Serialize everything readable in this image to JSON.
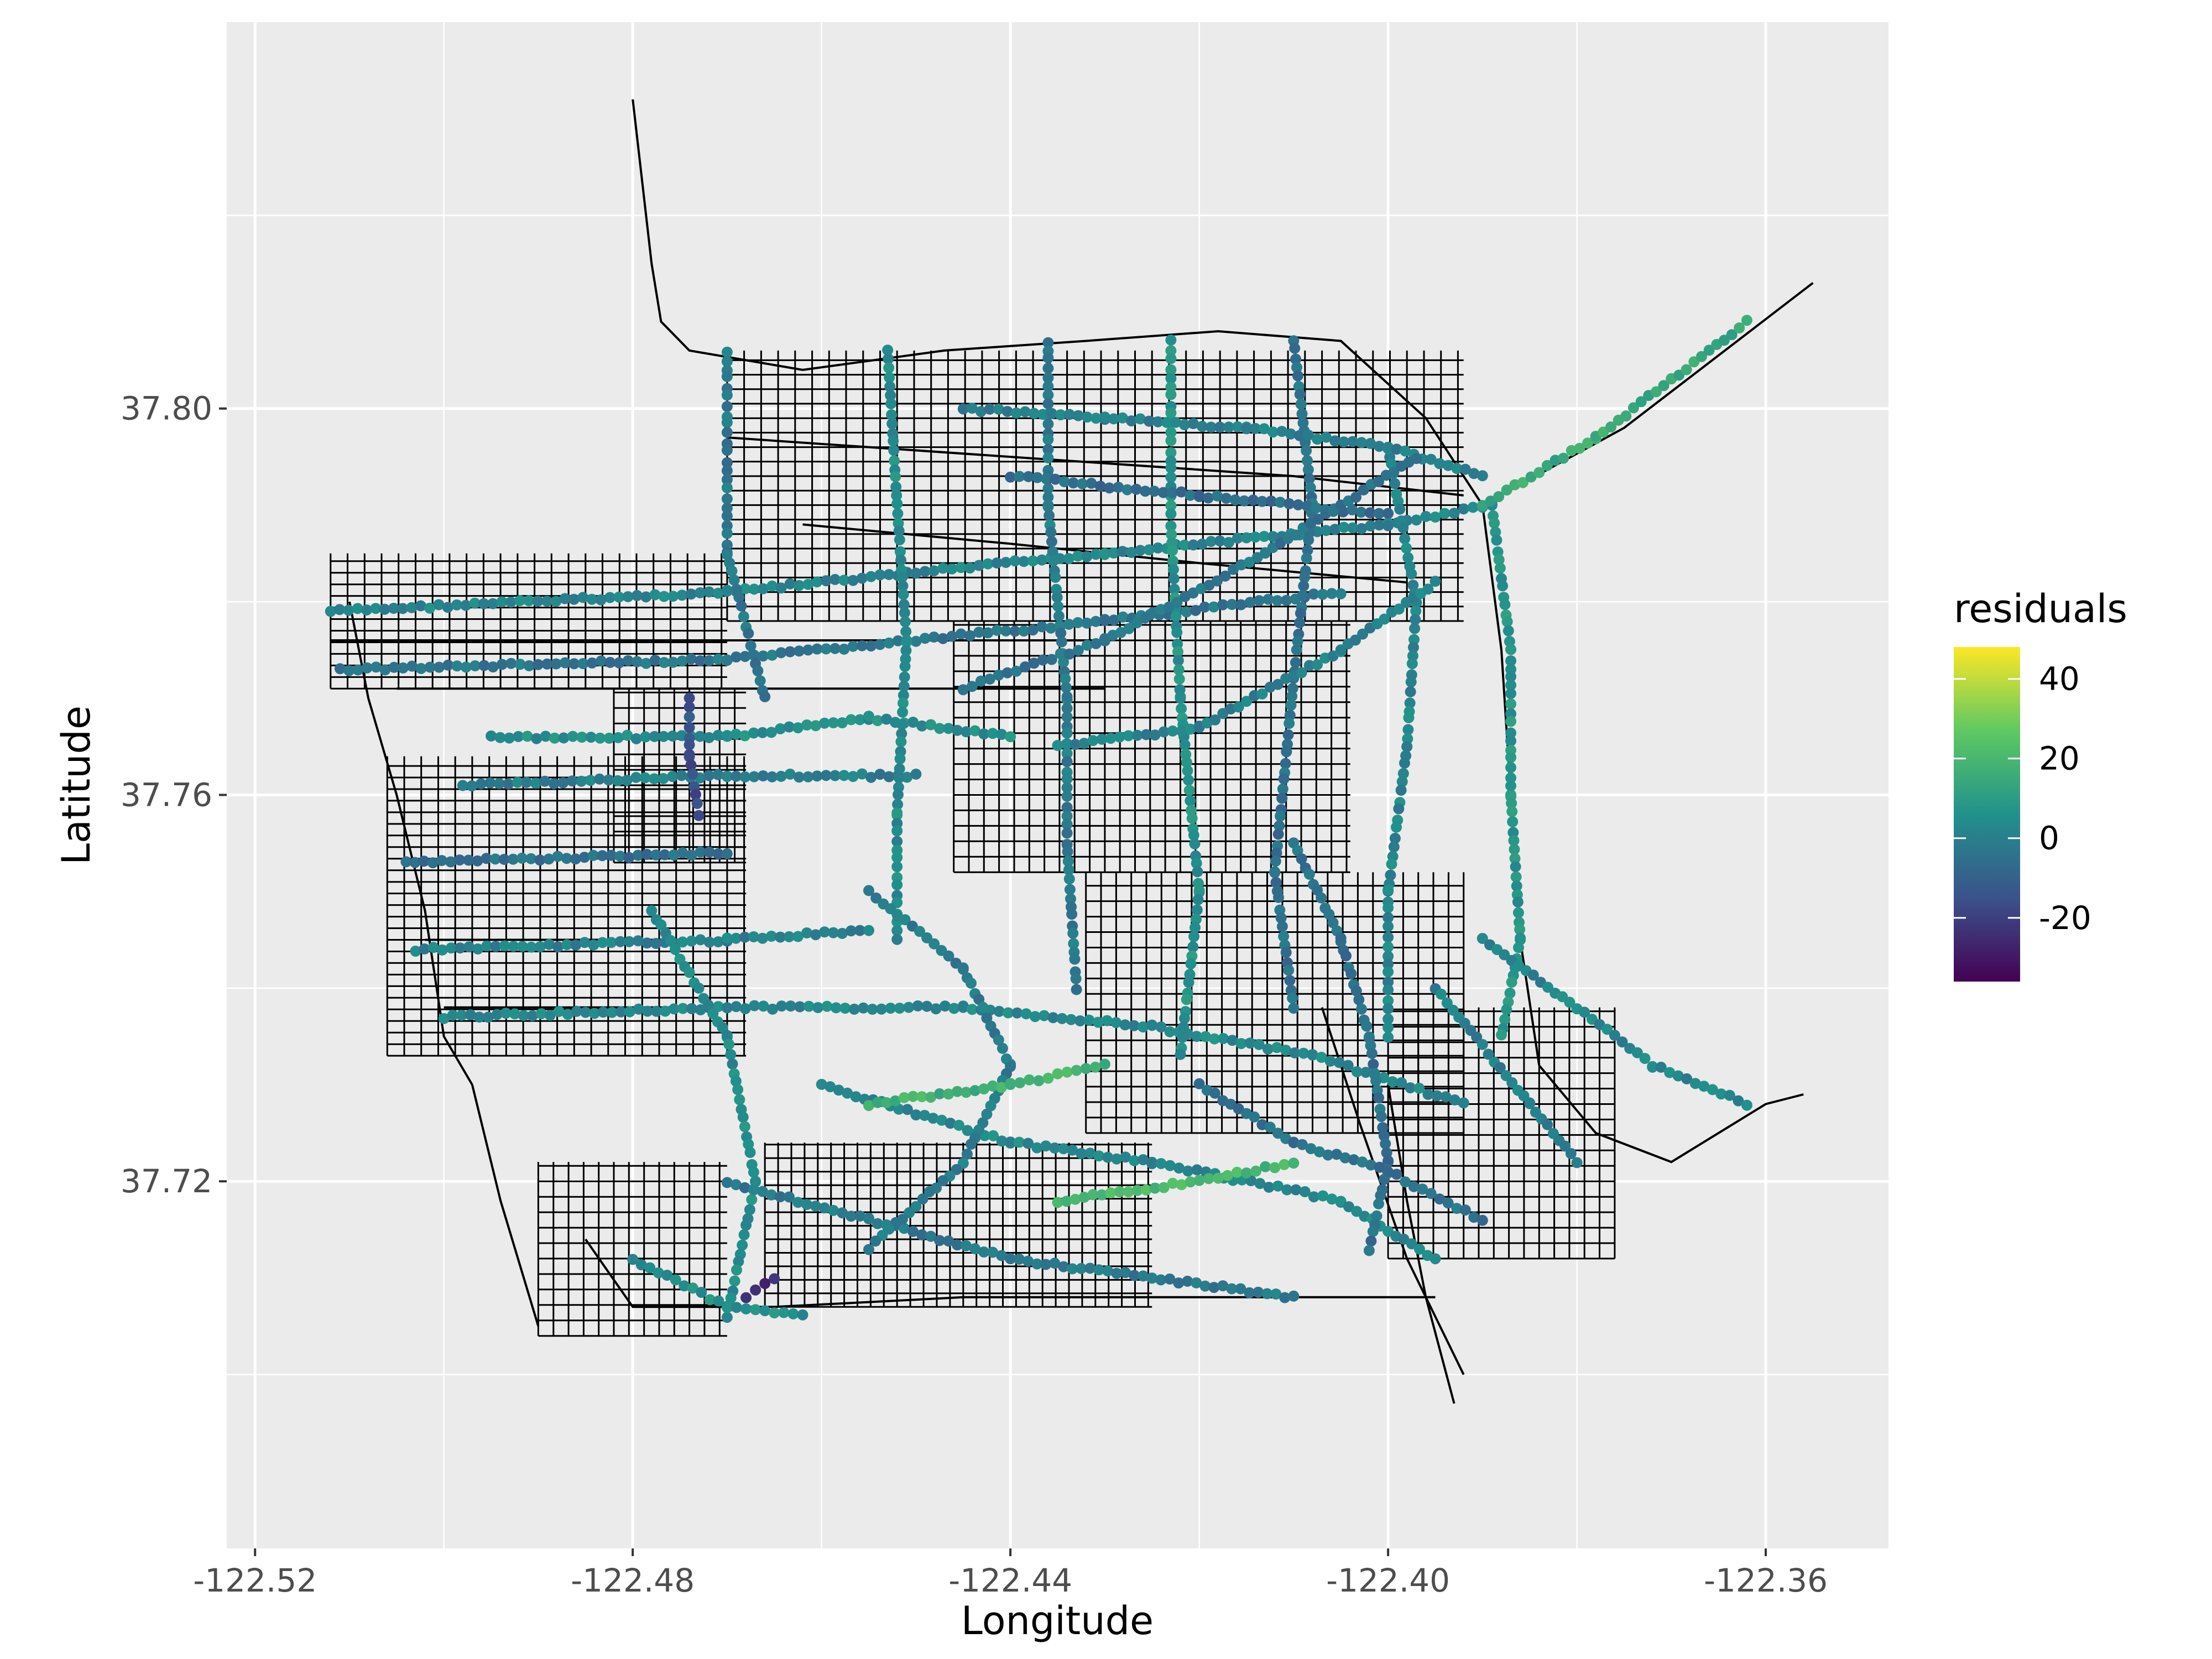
{
  "chart_data": {
    "type": "scatter",
    "title": "",
    "xlabel": "Longitude",
    "ylabel": "Latitude",
    "xlim": [
      -122.523,
      -122.347
    ],
    "ylim": [
      37.682,
      37.84
    ],
    "x_ticks": [
      -122.52,
      -122.48,
      -122.44,
      -122.4,
      -122.36
    ],
    "x_tick_labels": [
      "-122.52",
      "-122.48",
      "-122.44",
      "-122.40",
      "-122.36"
    ],
    "y_ticks": [
      37.72,
      37.76,
      37.8
    ],
    "y_tick_labels": [
      "37.72",
      "37.76",
      "37.80"
    ],
    "grid": true,
    "background": "#ebebeb",
    "legend": {
      "title": "residuals",
      "placement": "right",
      "range": [
        -36,
        48
      ],
      "ticks": [
        40,
        20,
        0,
        -20
      ],
      "tick_labels": [
        "40",
        "20",
        "0",
        "-20"
      ],
      "colormap": "viridis",
      "colors": [
        "#440154",
        "#3b528b",
        "#21918c",
        "#5ec962",
        "#fde725"
      ]
    },
    "layers": [
      {
        "name": "streets",
        "type": "lines",
        "color": "#000000"
      },
      {
        "name": "points",
        "type": "scatter",
        "color_by": "residuals"
      }
    ],
    "street_lines": [
      [
        [
          -122.48,
          37.832
        ],
        [
          -122.478,
          37.815
        ],
        [
          -122.477,
          37.809
        ],
        [
          -122.474,
          37.806
        ],
        [
          -122.468,
          37.805
        ],
        [
          -122.462,
          37.804
        ]
      ],
      [
        [
          -122.39,
          37.79
        ],
        [
          -122.375,
          37.798
        ],
        [
          -122.363,
          37.807
        ],
        [
          -122.355,
          37.813
        ]
      ],
      [
        [
          -122.462,
          37.804
        ],
        [
          -122.447,
          37.806
        ],
        [
          -122.432,
          37.807
        ],
        [
          -122.418,
          37.808
        ],
        [
          -122.405,
          37.807
        ],
        [
          -122.396,
          37.799
        ],
        [
          -122.39,
          37.79
        ]
      ],
      [
        [
          -122.51,
          37.78
        ],
        [
          -122.508,
          37.77
        ],
        [
          -122.505,
          37.76
        ],
        [
          -122.502,
          37.748
        ],
        [
          -122.5,
          37.735
        ],
        [
          -122.497,
          37.73
        ]
      ],
      [
        [
          -122.497,
          37.73
        ],
        [
          -122.494,
          37.718
        ],
        [
          -122.49,
          37.705
        ]
      ],
      [
        [
          -122.485,
          37.714
        ],
        [
          -122.48,
          37.707
        ],
        [
          -122.465,
          37.707
        ],
        [
          -122.445,
          37.708
        ],
        [
          -122.425,
          37.708
        ],
        [
          -122.405,
          37.708
        ],
        [
          -122.395,
          37.708
        ]
      ],
      [
        [
          -122.39,
          37.79
        ],
        [
          -122.388,
          37.775
        ],
        [
          -122.387,
          37.76
        ],
        [
          -122.386,
          37.745
        ],
        [
          -122.384,
          37.732
        ]
      ],
      [
        [
          -122.384,
          37.732
        ],
        [
          -122.378,
          37.725
        ],
        [
          -122.37,
          37.722
        ],
        [
          -122.36,
          37.728
        ],
        [
          -122.356,
          37.729
        ]
      ],
      [
        [
          -122.4,
          37.73
        ],
        [
          -122.398,
          37.718
        ],
        [
          -122.396,
          37.708
        ],
        [
          -122.393,
          37.697
        ]
      ],
      [
        [
          -122.407,
          37.738
        ],
        [
          -122.403,
          37.726
        ],
        [
          -122.398,
          37.712
        ],
        [
          -122.392,
          37.7
        ]
      ],
      [
        [
          -122.512,
          37.776
        ],
        [
          -122.43,
          37.776
        ]
      ],
      [
        [
          -122.505,
          37.771
        ],
        [
          -122.43,
          37.771
        ]
      ],
      [
        [
          -122.47,
          37.797
        ],
        [
          -122.44,
          37.795
        ],
        [
          -122.41,
          37.793
        ],
        [
          -122.392,
          37.791
        ]
      ],
      [
        [
          -122.462,
          37.788
        ],
        [
          -122.44,
          37.786
        ],
        [
          -122.42,
          37.784
        ],
        [
          -122.398,
          37.782
        ]
      ],
      [
        [
          -122.502,
          37.745
        ],
        [
          -122.47,
          37.745
        ]
      ],
      [
        [
          -122.5,
          37.738
        ],
        [
          -122.47,
          37.738
        ]
      ]
    ],
    "street_grids": [
      {
        "x": [
          -122.512,
          -122.47
        ],
        "y": [
          37.771,
          37.785
        ],
        "dx": 0.0018,
        "dy": 0.0012
      },
      {
        "x": [
          -122.506,
          -122.468
        ],
        "y": [
          37.733,
          37.764
        ],
        "dx": 0.0018,
        "dy": 0.0012
      },
      {
        "x": [
          -122.47,
          -122.392
        ],
        "y": [
          37.778,
          37.806
        ],
        "dx": 0.0018,
        "dy": 0.0015
      },
      {
        "x": [
          -122.446,
          -122.404
        ],
        "y": [
          37.752,
          37.778
        ],
        "dx": 0.0016,
        "dy": 0.0016
      },
      {
        "x": [
          -122.432,
          -122.392
        ],
        "y": [
          37.725,
          37.752
        ],
        "dx": 0.0016,
        "dy": 0.0016
      },
      {
        "x": [
          -122.466,
          -122.425
        ],
        "y": [
          37.707,
          37.724
        ],
        "dx": 0.0014,
        "dy": 0.0014
      },
      {
        "x": [
          -122.4,
          -122.376
        ],
        "y": [
          37.712,
          37.738
        ],
        "dx": 0.0016,
        "dy": 0.0016
      },
      {
        "x": [
          -122.49,
          -122.47
        ],
        "y": [
          37.704,
          37.722
        ],
        "dx": 0.0016,
        "dy": 0.0016
      },
      {
        "x": [
          -122.482,
          -122.468
        ],
        "y": [
          37.753,
          37.771
        ],
        "dx": 0.0016,
        "dy": 0.0016
      }
    ],
    "point_routes": [
      {
        "residual": 2,
        "path": [
          [
            -122.512,
            37.779
          ],
          [
            -122.47,
            37.781
          ],
          [
            -122.43,
            37.785
          ],
          [
            -122.4,
            37.788
          ],
          [
            -122.389,
            37.79
          ]
        ]
      },
      {
        "residual": -3,
        "path": [
          [
            -122.511,
            37.773
          ],
          [
            -122.47,
            37.774
          ],
          [
            -122.43,
            37.778
          ],
          [
            -122.405,
            37.781
          ]
        ]
      },
      {
        "residual": 5,
        "path": [
          [
            -122.495,
            37.766
          ],
          [
            -122.47,
            37.766
          ],
          [
            -122.455,
            37.768
          ],
          [
            -122.44,
            37.766
          ]
        ]
      },
      {
        "residual": 0,
        "path": [
          [
            -122.498,
            37.761
          ],
          [
            -122.47,
            37.762
          ],
          [
            -122.45,
            37.762
          ]
        ]
      },
      {
        "residual": -5,
        "path": [
          [
            -122.504,
            37.753
          ],
          [
            -122.47,
            37.754
          ]
        ]
      },
      {
        "residual": 1,
        "path": [
          [
            -122.503,
            37.744
          ],
          [
            -122.47,
            37.745
          ],
          [
            -122.455,
            37.746
          ]
        ]
      },
      {
        "residual": 3,
        "path": [
          [
            -122.5,
            37.737
          ],
          [
            -122.47,
            37.738
          ],
          [
            -122.445,
            37.738
          ],
          [
            -122.425,
            37.736
          ],
          [
            -122.408,
            37.733
          ],
          [
            -122.392,
            37.728
          ]
        ]
      },
      {
        "residual": -2,
        "path": [
          [
            -122.47,
            37.806
          ],
          [
            -122.47,
            37.785
          ],
          [
            -122.466,
            37.77
          ]
        ]
      },
      {
        "residual": 4,
        "path": [
          [
            -122.453,
            37.806
          ],
          [
            -122.452,
            37.79
          ],
          [
            -122.451,
            37.776
          ],
          [
            -122.452,
            37.758
          ],
          [
            -122.452,
            37.745
          ]
        ]
      },
      {
        "residual": -1,
        "path": [
          [
            -122.436,
            37.807
          ],
          [
            -122.436,
            37.79
          ],
          [
            -122.434,
            37.77
          ],
          [
            -122.434,
            37.755
          ],
          [
            -122.433,
            37.74
          ]
        ]
      },
      {
        "residual": 6,
        "path": [
          [
            -122.423,
            37.807
          ],
          [
            -122.423,
            37.788
          ],
          [
            -122.422,
            37.77
          ],
          [
            -122.42,
            37.75
          ],
          [
            -122.422,
            37.733
          ]
        ]
      },
      {
        "residual": -4,
        "path": [
          [
            -122.41,
            37.807
          ],
          [
            -122.408,
            37.79
          ],
          [
            -122.41,
            37.772
          ],
          [
            -122.412,
            37.752
          ],
          [
            -122.41,
            37.738
          ]
        ]
      },
      {
        "residual": 2,
        "path": [
          [
            -122.4,
            37.796
          ],
          [
            -122.397,
            37.78
          ],
          [
            -122.398,
            37.765
          ],
          [
            -122.4,
            37.75
          ],
          [
            -122.4,
            37.735
          ]
        ]
      },
      {
        "residual": 0,
        "path": [
          [
            -122.445,
            37.8
          ],
          [
            -122.43,
            37.799
          ],
          [
            -122.415,
            37.798
          ],
          [
            -122.4,
            37.796
          ],
          [
            -122.39,
            37.793
          ]
        ]
      },
      {
        "residual": -6,
        "path": [
          [
            -122.44,
            37.793
          ],
          [
            -122.42,
            37.791
          ],
          [
            -122.4,
            37.789
          ]
        ]
      },
      {
        "residual": 7,
        "path": [
          [
            -122.389,
            37.79
          ],
          [
            -122.387,
            37.775
          ],
          [
            -122.387,
            37.76
          ],
          [
            -122.386,
            37.745
          ],
          [
            -122.388,
            37.735
          ]
        ]
      },
      {
        "residual": 1,
        "path": [
          [
            -122.435,
            37.765
          ],
          [
            -122.42,
            37.767
          ],
          [
            -122.405,
            37.775
          ],
          [
            -122.395,
            37.782
          ]
        ]
      },
      {
        "residual": -3,
        "path": [
          [
            -122.445,
            37.771
          ],
          [
            -122.43,
            37.776
          ],
          [
            -122.413,
            37.785
          ],
          [
            -122.397,
            37.795
          ]
        ]
      },
      {
        "residual": 4,
        "path": [
          [
            -122.478,
            37.748
          ],
          [
            -122.47,
            37.735
          ],
          [
            -122.467,
            37.72
          ],
          [
            -122.47,
            37.706
          ]
        ]
      },
      {
        "residual": -2,
        "path": [
          [
            -122.47,
            37.72
          ],
          [
            -122.455,
            37.716
          ],
          [
            -122.44,
            37.712
          ],
          [
            -122.425,
            37.71
          ],
          [
            -122.41,
            37.708
          ]
        ]
      },
      {
        "residual": 3,
        "path": [
          [
            -122.46,
            37.73
          ],
          [
            -122.44,
            37.724
          ],
          [
            -122.425,
            37.722
          ],
          [
            -122.405,
            37.718
          ],
          [
            -122.395,
            37.712
          ]
        ]
      },
      {
        "residual": -1,
        "path": [
          [
            -122.455,
            37.75
          ],
          [
            -122.445,
            37.742
          ],
          [
            -122.44,
            37.732
          ],
          [
            -122.445,
            37.722
          ],
          [
            -122.455,
            37.713
          ]
        ]
      },
      {
        "residual": 5,
        "path": [
          [
            -122.48,
            37.712
          ],
          [
            -122.47,
            37.707
          ],
          [
            -122.462,
            37.706
          ]
        ]
      },
      {
        "residual": -5,
        "path": [
          [
            -122.41,
            37.755
          ],
          [
            -122.405,
            37.745
          ],
          [
            -122.402,
            37.735
          ],
          [
            -122.4,
            37.722
          ],
          [
            -122.402,
            37.713
          ]
        ]
      },
      {
        "residual": 2,
        "path": [
          [
            -122.39,
            37.745
          ],
          [
            -122.38,
            37.738
          ],
          [
            -122.372,
            37.732
          ],
          [
            -122.362,
            37.728
          ]
        ]
      },
      {
        "residual": 0,
        "path": [
          [
            -122.395,
            37.74
          ],
          [
            -122.385,
            37.728
          ],
          [
            -122.38,
            37.722
          ]
        ]
      },
      {
        "residual": -4,
        "path": [
          [
            -122.42,
            37.73
          ],
          [
            -122.41,
            37.724
          ],
          [
            -122.4,
            37.721
          ],
          [
            -122.39,
            37.716
          ]
        ]
      },
      {
        "residual": 15,
        "path": [
          [
            -122.39,
            37.79
          ],
          [
            -122.378,
            37.797
          ],
          [
            -122.37,
            37.803
          ],
          [
            -122.362,
            37.809
          ]
        ]
      },
      {
        "residual": 18,
        "path": [
          [
            -122.455,
            37.728
          ],
          [
            -122.44,
            37.73
          ],
          [
            -122.43,
            37.732
          ]
        ]
      },
      {
        "residual": 20,
        "path": [
          [
            -122.435,
            37.718
          ],
          [
            -122.42,
            37.72
          ],
          [
            -122.41,
            37.722
          ]
        ]
      },
      {
        "residual": -15,
        "path": [
          [
            -122.474,
            37.77
          ],
          [
            -122.474,
            37.764
          ],
          [
            -122.473,
            37.758
          ]
        ]
      },
      {
        "residual": -25,
        "path": [
          [
            -122.465,
            37.71
          ],
          [
            -122.468,
            37.708
          ]
        ]
      }
    ]
  }
}
